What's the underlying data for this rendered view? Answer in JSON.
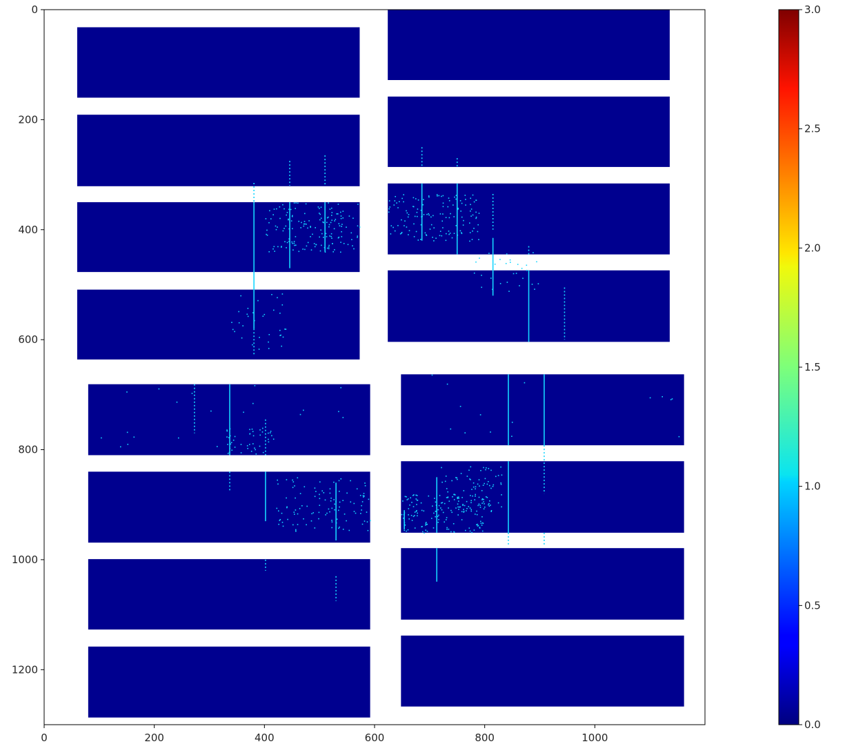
{
  "chart_data": {
    "type": "heatmap",
    "title": "",
    "xlabel": "",
    "ylabel": "",
    "xlim": [
      0,
      1200
    ],
    "ylim": [
      1300,
      0
    ],
    "y_inverted": true,
    "x_ticks": [
      0,
      200,
      400,
      600,
      800,
      1000
    ],
    "x_tick_labels": [
      "0",
      "200",
      "400",
      "600",
      "800",
      "1000"
    ],
    "y_ticks": [
      0,
      200,
      400,
      600,
      800,
      1000,
      1200
    ],
    "y_tick_labels": [
      "0",
      "200",
      "400",
      "600",
      "800",
      "1000",
      "1200"
    ],
    "colormap": "jet",
    "colorbar": {
      "vmin": 0.0,
      "vmax": 3.0,
      "ticks": [
        0.0,
        0.5,
        1.0,
        1.5,
        2.0,
        2.5,
        3.0
      ],
      "tick_labels": [
        "0.0",
        "0.5",
        "1.0",
        "1.5",
        "2.0",
        "2.5",
        "3.0"
      ]
    },
    "background_value": 0.0,
    "hit_value": 1.0,
    "panel_color": "#00008f",
    "hit_color": "#16d6ff",
    "modules": [
      {
        "x": [
          60,
          573
        ],
        "y": [
          32,
          160
        ]
      },
      {
        "x": [
          60,
          573
        ],
        "y": [
          191,
          321
        ]
      },
      {
        "x": [
          60,
          573
        ],
        "y": [
          350,
          477
        ]
      },
      {
        "x": [
          60,
          573
        ],
        "y": [
          509,
          636
        ]
      },
      {
        "x": [
          624,
          1136
        ],
        "y": [
          0,
          128
        ]
      },
      {
        "x": [
          624,
          1136
        ],
        "y": [
          158,
          286
        ]
      },
      {
        "x": [
          624,
          1136
        ],
        "y": [
          316,
          445
        ]
      },
      {
        "x": [
          624,
          1136
        ],
        "y": [
          474,
          604
        ]
      },
      {
        "x": [
          80,
          592
        ],
        "y": [
          681,
          810
        ]
      },
      {
        "x": [
          80,
          592
        ],
        "y": [
          840,
          969
        ]
      },
      {
        "x": [
          80,
          592
        ],
        "y": [
          999,
          1127
        ]
      },
      {
        "x": [
          80,
          592
        ],
        "y": [
          1158,
          1287
        ]
      },
      {
        "x": [
          648,
          1162
        ],
        "y": [
          663,
          792
        ]
      },
      {
        "x": [
          648,
          1162
        ],
        "y": [
          821,
          951
        ]
      },
      {
        "x": [
          648,
          1162
        ],
        "y": [
          979,
          1109
        ]
      },
      {
        "x": [
          648,
          1162
        ],
        "y": [
          1138,
          1267
        ]
      }
    ],
    "hit_lines": [
      {
        "x": 381,
        "y": [
          350,
          580
        ]
      },
      {
        "x": 446,
        "y": [
          350,
          470
        ]
      },
      {
        "x": 510,
        "y": [
          350,
          440
        ]
      },
      {
        "x": 686,
        "y": [
          316,
          420
        ]
      },
      {
        "x": 750,
        "y": [
          316,
          445
        ]
      },
      {
        "x": 815,
        "y": [
          415,
          520
        ]
      },
      {
        "x": 880,
        "y": [
          474,
          604
        ]
      },
      {
        "x": 337,
        "y": [
          681,
          810
        ]
      },
      {
        "x": 402,
        "y": [
          840,
          930
        ]
      },
      {
        "x": 530,
        "y": [
          860,
          965
        ]
      },
      {
        "x": 713,
        "y": [
          850,
          951
        ]
      },
      {
        "x": 713,
        "y": [
          979,
          1040
        ]
      },
      {
        "x": 843,
        "y": [
          663,
          792
        ]
      },
      {
        "x": 843,
        "y": [
          821,
          951
        ]
      },
      {
        "x": 908,
        "y": [
          663,
          792
        ]
      },
      {
        "x": 654,
        "y": [
          910,
          945
        ]
      }
    ],
    "hit_dashes": [
      {
        "x": 381,
        "y": [
          315,
          350
        ]
      },
      {
        "x": 446,
        "y": [
          275,
          320
        ]
      },
      {
        "x": 510,
        "y": [
          265,
          320
        ]
      },
      {
        "x": 381,
        "y": [
          580,
          630
        ]
      },
      {
        "x": 686,
        "y": [
          250,
          285
        ]
      },
      {
        "x": 750,
        "y": [
          270,
          285
        ]
      },
      {
        "x": 815,
        "y": [
          335,
          400
        ]
      },
      {
        "x": 880,
        "y": [
          430,
          445
        ]
      },
      {
        "x": 945,
        "y": [
          505,
          600
        ]
      },
      {
        "x": 273,
        "y": [
          681,
          770
        ]
      },
      {
        "x": 402,
        "y": [
          745,
          810
        ]
      },
      {
        "x": 337,
        "y": [
          840,
          875
        ]
      },
      {
        "x": 530,
        "y": [
          1030,
          1075
        ]
      },
      {
        "x": 402,
        "y": [
          1000,
          1020
        ]
      },
      {
        "x": 843,
        "y": [
          951,
          975
        ]
      },
      {
        "x": 908,
        "y": [
          792,
          880
        ]
      },
      {
        "x": 908,
        "y": [
          951,
          975
        ]
      }
    ],
    "scatter_bands": [
      {
        "x": [
          400,
          573
        ],
        "y": [
          350,
          440
        ],
        "count": 160
      },
      {
        "x": [
          624,
          790
        ],
        "y": [
          335,
          420
        ],
        "count": 140
      },
      {
        "x": [
          330,
          440
        ],
        "y": [
          510,
          620
        ],
        "count": 35
      },
      {
        "x": [
          780,
          900
        ],
        "y": [
          440,
          520
        ],
        "count": 30
      },
      {
        "x": [
          330,
          420
        ],
        "y": [
          760,
          810
        ],
        "count": 45
      },
      {
        "x": [
          420,
          592
        ],
        "y": [
          850,
          950
        ],
        "count": 110
      },
      {
        "x": [
          648,
          800
        ],
        "y": [
          880,
          951
        ],
        "count": 150
      },
      {
        "x": [
          720,
          830
        ],
        "y": [
          830,
          920
        ],
        "count": 80
      },
      {
        "x": [
          648,
          1162
        ],
        "y": [
          663,
          792
        ],
        "count": 15
      },
      {
        "x": [
          80,
          592
        ],
        "y": [
          681,
          810
        ],
        "count": 20
      }
    ]
  }
}
